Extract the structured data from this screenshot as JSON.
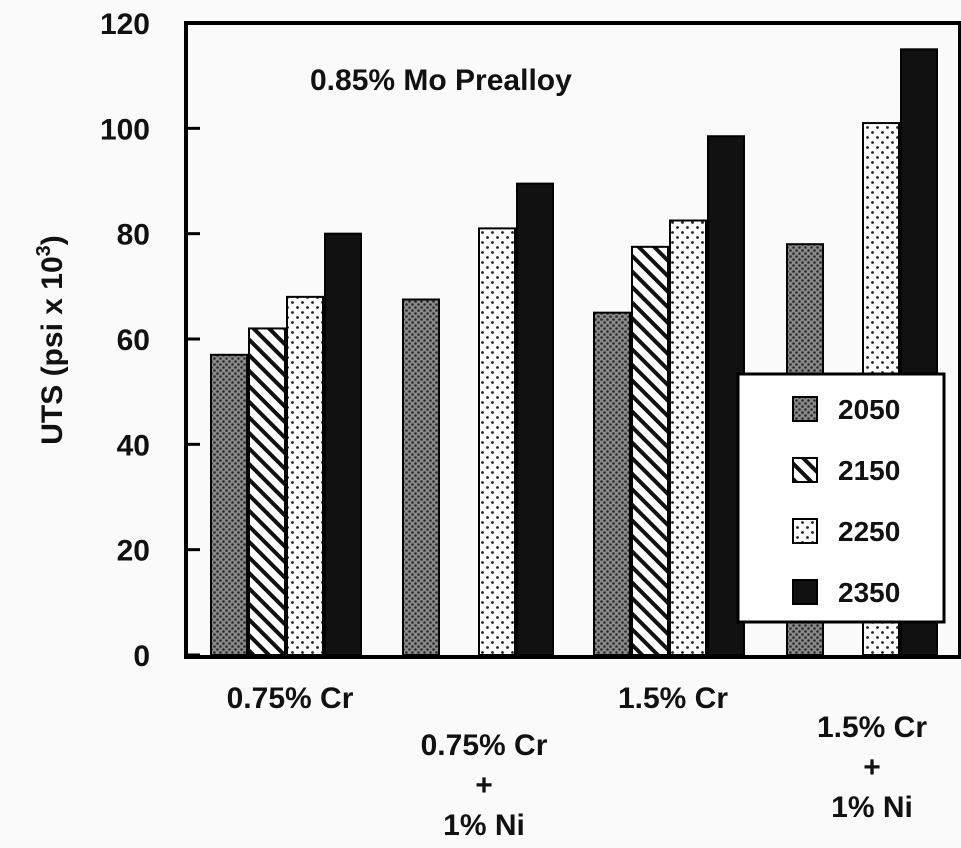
{
  "chart_data": {
    "type": "bar",
    "title": "0.85% Mo Prealloy",
    "ylabel": "UTS (psi x 10",
    "ylabel_sup": "3",
    "ylabel_close": ")",
    "xlabel": "",
    "ylim": [
      0,
      120
    ],
    "yticks": [
      "0",
      "20",
      "40",
      "60",
      "80",
      "100",
      "120"
    ],
    "categories": [
      [
        "0.75% Cr"
      ],
      [
        "0.75% Cr",
        "+",
        "1% Ni"
      ],
      [
        "1.5% Cr"
      ],
      [
        "1.5% Cr",
        "+",
        "1% Ni"
      ]
    ],
    "series": [
      {
        "name": "2050",
        "pattern": "dense-dots",
        "values": [
          57,
          67.5,
          65,
          78
        ]
      },
      {
        "name": "2150",
        "pattern": "diagonal-hatch",
        "values": [
          62,
          null,
          77.5,
          null
        ]
      },
      {
        "name": "2250",
        "pattern": "sparse-dots",
        "values": [
          68,
          81,
          82.5,
          101
        ]
      },
      {
        "name": "2350",
        "pattern": "solid-black",
        "values": [
          80,
          89.5,
          98.5,
          115
        ]
      }
    ],
    "legend_position": "bottom-right",
    "grid": false
  }
}
